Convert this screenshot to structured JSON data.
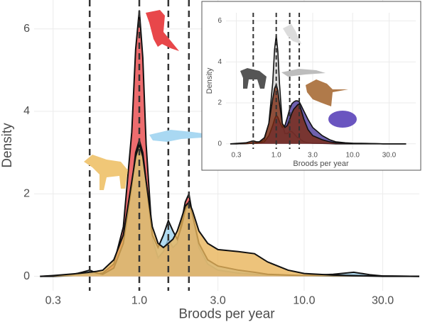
{
  "chart_data": [
    {
      "type": "density",
      "xlabel": "Broods per year",
      "ylabel": "Density",
      "xscale": "log",
      "xlim": [
        0.23,
        50
      ],
      "ylim": [
        -0.35,
        6.7
      ],
      "xticks": [
        0.3,
        {
          "value": 1,
          "label": "1.0"
        },
        {
          "value": 3,
          "label": "3.0"
        },
        {
          "value": 10,
          "label": "10.0"
        },
        {
          "value": 30,
          "label": "30.0"
        }
      ],
      "yticks": [
        0,
        2,
        4,
        6
      ],
      "grid": true,
      "vlines": [
        0.5,
        1,
        1.5,
        2
      ],
      "x": [
        0.25,
        0.3,
        0.4,
        0.45,
        0.5,
        0.55,
        0.6,
        0.7,
        0.8,
        0.9,
        0.95,
        1.0,
        1.05,
        1.1,
        1.2,
        1.3,
        1.4,
        1.5,
        1.6,
        1.7,
        1.8,
        1.9,
        2.0,
        2.1,
        2.3,
        2.6,
        3.0,
        4,
        5,
        6,
        8,
        10,
        15,
        20,
        25,
        30,
        50
      ],
      "series": [
        {
          "color": "#e8474a",
          "values": [
            0,
            0,
            0.02,
            0.05,
            0.08,
            0.06,
            0.08,
            0.3,
            1.2,
            3.5,
            5.5,
            6.45,
            5.3,
            3.2,
            0.9,
            0.45,
            0.6,
            0.9,
            0.7,
            0.8,
            1.3,
            1.8,
            2.0,
            1.5,
            0.7,
            0.3,
            0.15,
            0.08,
            0.05,
            0.03,
            0.02,
            0.02,
            0.01,
            0.01,
            0.01,
            0,
            0
          ]
        },
        {
          "color": "#9fd3ef",
          "values": [
            0,
            0.01,
            0.05,
            0.1,
            0.15,
            0.08,
            0.05,
            0.2,
            0.8,
            2.2,
            3.0,
            3.3,
            3.0,
            2.3,
            1.0,
            0.7,
            1.0,
            1.35,
            1.1,
            0.9,
            1.2,
            1.6,
            1.8,
            1.5,
            0.8,
            0.4,
            0.25,
            0.15,
            0.1,
            0.05,
            0.03,
            0.02,
            0.05,
            0.1,
            0.04,
            0.01,
            0
          ]
        },
        {
          "color": "#e8b45a",
          "values": [
            0,
            0.02,
            0.06,
            0.08,
            0.1,
            0.12,
            0.15,
            0.4,
            1.0,
            2.3,
            2.9,
            3.2,
            2.9,
            2.3,
            1.2,
            0.8,
            0.7,
            0.8,
            0.9,
            1.1,
            1.4,
            1.7,
            1.8,
            1.6,
            1.1,
            0.8,
            0.65,
            0.6,
            0.55,
            0.35,
            0.15,
            0.07,
            0.03,
            0.02,
            0.01,
            0.01,
            0
          ]
        }
      ]
    },
    {
      "type": "density",
      "xlabel": "Broods per year",
      "ylabel": "Density",
      "xscale": "log",
      "xlim": [
        0.22,
        67
      ],
      "ylim": [
        -0.25,
        6.4
      ],
      "xticks": [
        0.3,
        {
          "value": 1,
          "label": "1.0"
        },
        {
          "value": 3,
          "label": "3.0"
        },
        {
          "value": 10,
          "label": "10.0"
        },
        {
          "value": 30,
          "label": "30.0"
        }
      ],
      "yticks": [
        0,
        2,
        4,
        6
      ],
      "grid": true,
      "vlines": [
        0.5,
        1,
        1.5,
        2
      ],
      "x": [
        0.25,
        0.3,
        0.4,
        0.45,
        0.5,
        0.55,
        0.6,
        0.7,
        0.8,
        0.9,
        0.95,
        1.0,
        1.05,
        1.1,
        1.2,
        1.3,
        1.4,
        1.5,
        1.6,
        1.7,
        1.8,
        1.9,
        2.0,
        2.1,
        2.3,
        2.6,
        3.0,
        4,
        5,
        6,
        8,
        10,
        15,
        20,
        25,
        30,
        50
      ],
      "series": [
        {
          "color": "#d4d4d4",
          "values": [
            0,
            0,
            0.01,
            0.02,
            0.05,
            0.05,
            0.05,
            0.2,
            1.0,
            3.0,
            4.6,
            5.3,
            4.5,
            3.0,
            1.0,
            0.5,
            0.5,
            0.6,
            0.6,
            0.5,
            0.4,
            0.3,
            0.3,
            0.2,
            0.1,
            0.05,
            0.03,
            0.02,
            0.01,
            0,
            0,
            0,
            0,
            0,
            0,
            0,
            0
          ]
        },
        {
          "color": "#4b3a9a",
          "values": [
            0,
            0,
            0.01,
            0.02,
            0.03,
            0.03,
            0.04,
            0.1,
            0.4,
            0.9,
            1.2,
            1.4,
            1.3,
            1.1,
            0.8,
            0.9,
            1.3,
            1.7,
            1.95,
            2.05,
            2.1,
            2.1,
            2.05,
            1.9,
            1.6,
            1.2,
            0.8,
            0.4,
            0.2,
            0.1,
            0.05,
            0.03,
            0.02,
            0.01,
            0,
            0,
            0
          ]
        },
        {
          "color": "#7a2b12",
          "values": [
            0,
            0.02,
            0.05,
            0.1,
            0.15,
            0.1,
            0.1,
            0.3,
            1.0,
            2.2,
            2.7,
            2.9,
            2.6,
            2.0,
            1.0,
            0.8,
            0.9,
            1.2,
            1.5,
            1.7,
            1.8,
            1.9,
            1.95,
            1.7,
            1.2,
            0.7,
            0.4,
            0.2,
            0.1,
            0.05,
            0.03,
            0.02,
            0.01,
            0.01,
            0,
            0,
            0
          ]
        }
      ]
    }
  ]
}
